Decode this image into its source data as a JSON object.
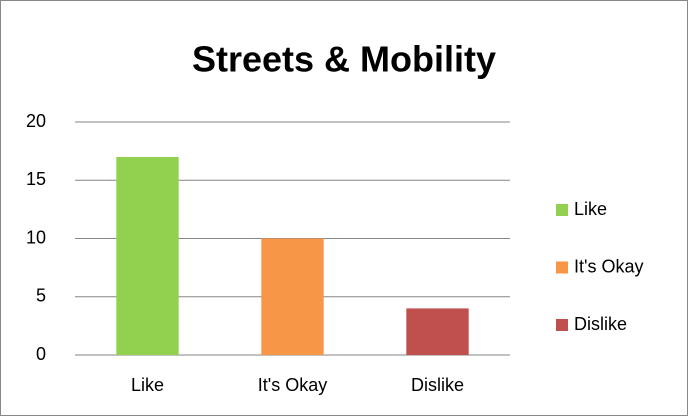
{
  "chart_data": {
    "type": "bar",
    "title": "Streets & Mobility",
    "categories": [
      "Like",
      "It's Okay",
      "Dislike"
    ],
    "values": [
      17,
      10,
      4
    ],
    "colors": [
      "#92d050",
      "#f79646",
      "#c0504d"
    ],
    "ylim": [
      0,
      20
    ],
    "yticks": [
      0,
      5,
      10,
      15,
      20
    ],
    "grid": true,
    "legend": "right"
  }
}
